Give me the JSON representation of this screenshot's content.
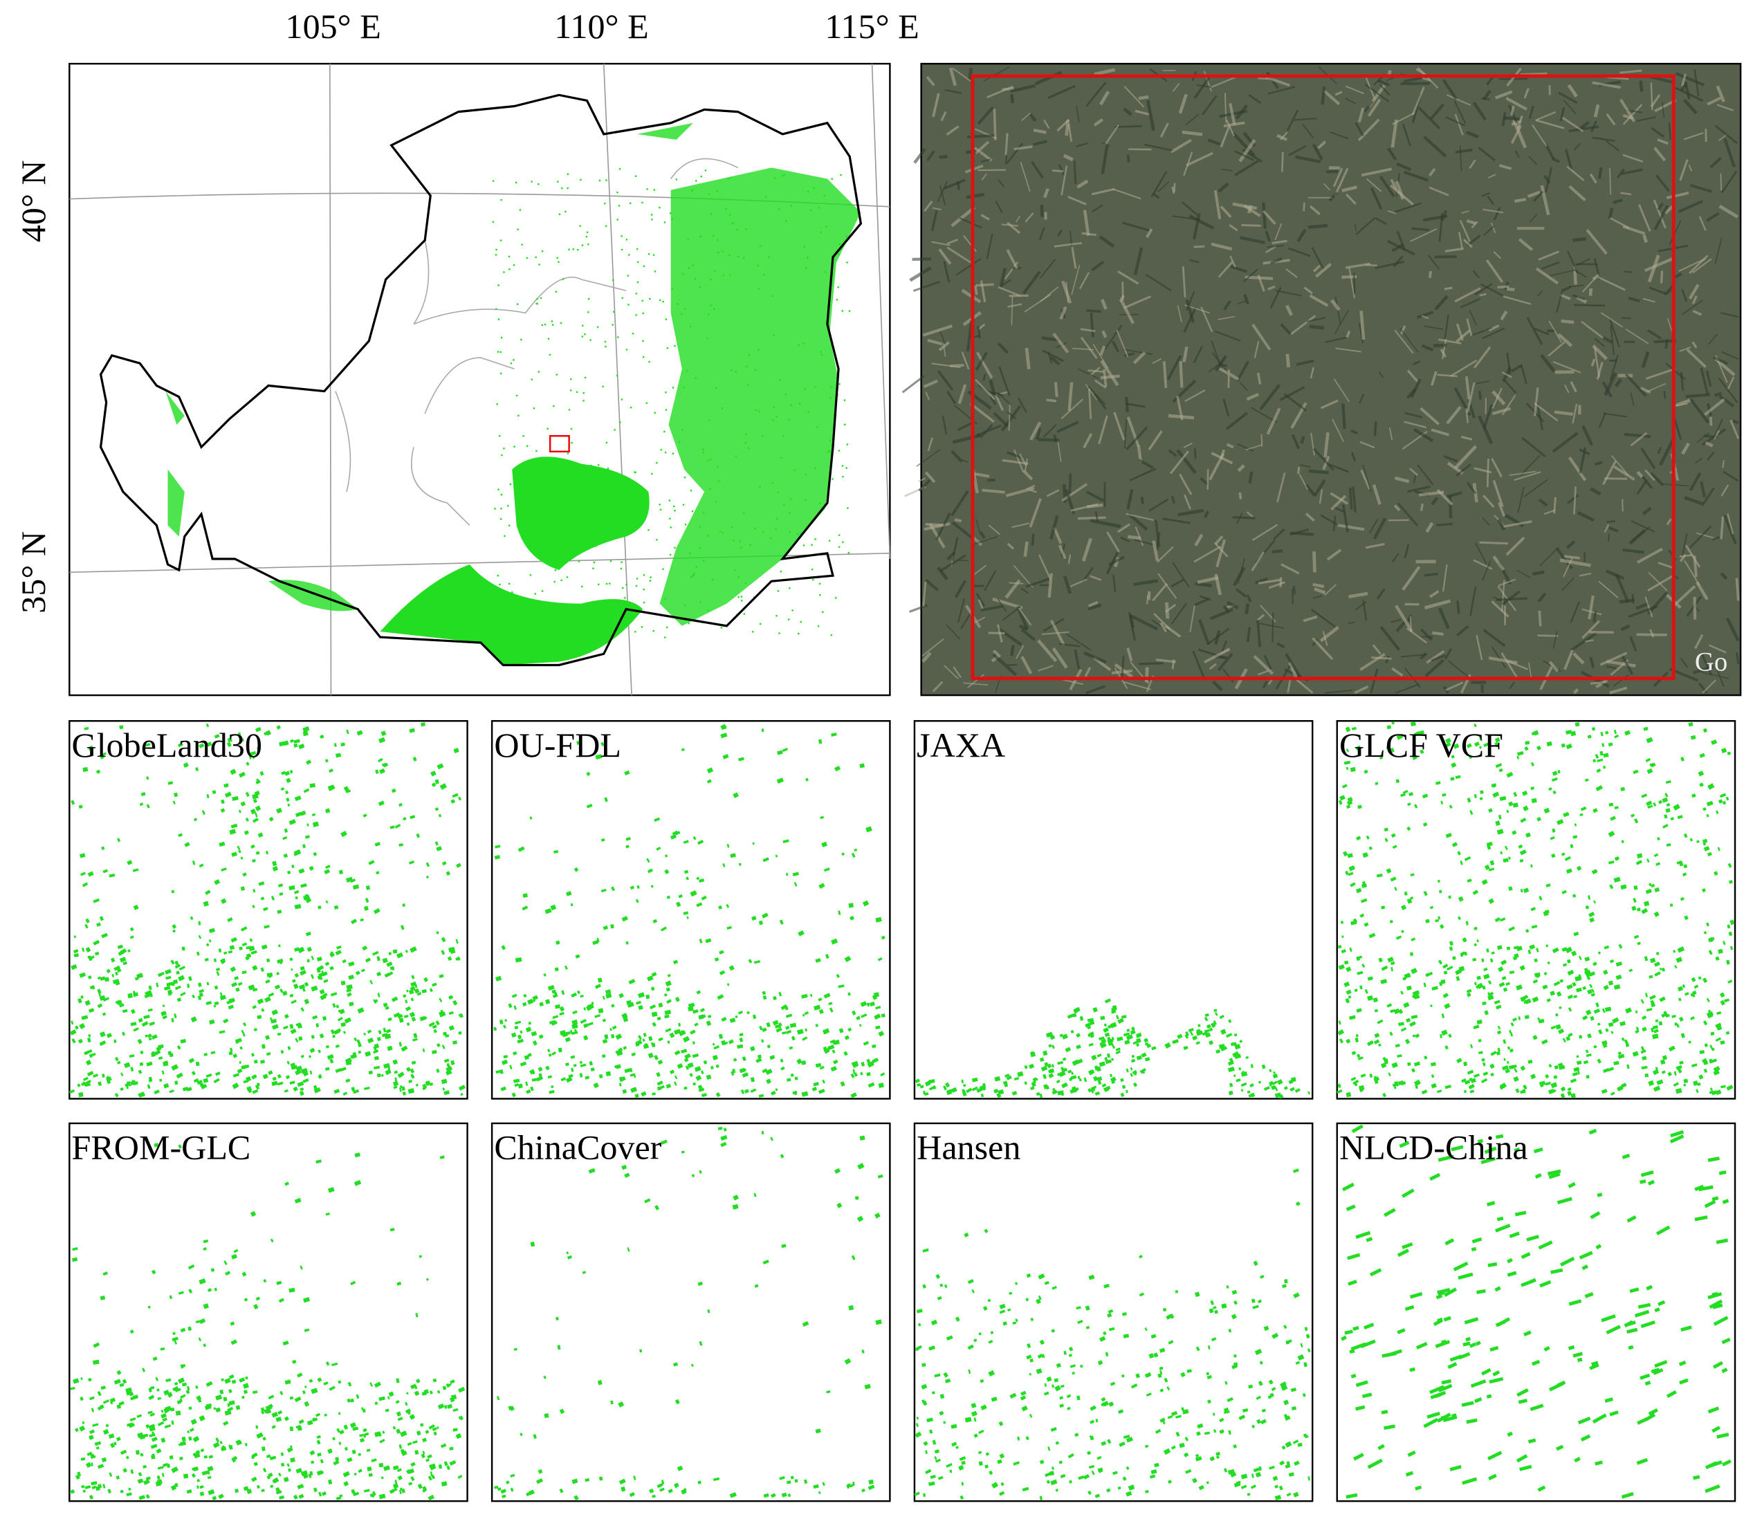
{
  "map": {
    "lon_labels": [
      "105° E",
      "110° E",
      "115° E"
    ],
    "lat_labels": [
      "40° N",
      "35° N"
    ]
  },
  "satellite": {
    "watermark": "Go"
  },
  "panels": [
    "GlobeLand30",
    "OU-FDL",
    "JAXA",
    "GLCF VCF",
    "FROM-GLC",
    "ChinaCover",
    "Hansen",
    "NLCD-China"
  ]
}
